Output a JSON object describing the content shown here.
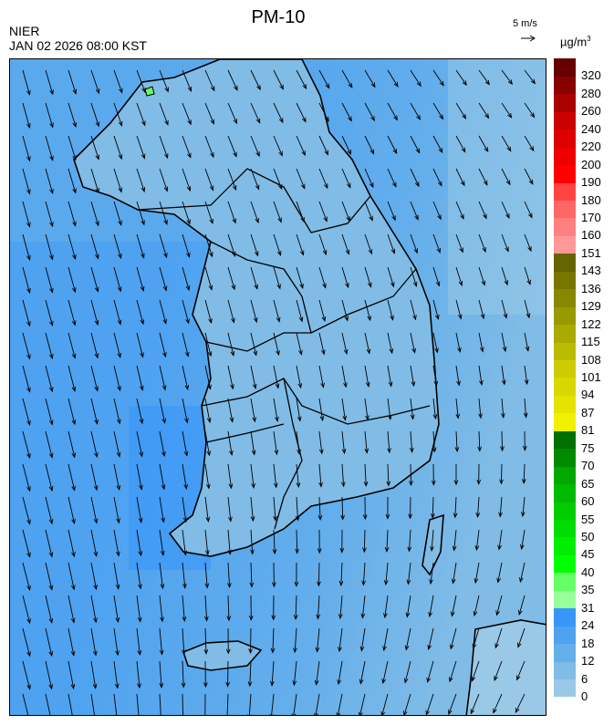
{
  "header": {
    "title": "PM-10",
    "organization": "NIER",
    "datetime": "JAN 02 2026 08:00 KST"
  },
  "wind_reference": {
    "label": "5 m/s",
    "icon": "arrow-right-icon"
  },
  "colorbar": {
    "unit": "µg/m",
    "unit_superscript": "3",
    "levels": [
      {
        "label": "0",
        "color": "#99c9e6"
      },
      {
        "label": "6",
        "color": "#80bce6"
      },
      {
        "label": "12",
        "color": "#64aeeb"
      },
      {
        "label": "18",
        "color": "#4ea2f0"
      },
      {
        "label": "24",
        "color": "#3896f8"
      },
      {
        "label": "31",
        "color": "#99ff99"
      },
      {
        "label": "35",
        "color": "#66ff66"
      },
      {
        "label": "40",
        "color": "#00ff00"
      },
      {
        "label": "45",
        "color": "#00ee00"
      },
      {
        "label": "50",
        "color": "#00dd00"
      },
      {
        "label": "55",
        "color": "#00cc00"
      },
      {
        "label": "60",
        "color": "#00bb00"
      },
      {
        "label": "65",
        "color": "#00a800"
      },
      {
        "label": "70",
        "color": "#008a00"
      },
      {
        "label": "75",
        "color": "#007000"
      },
      {
        "label": "81",
        "color": "#f0f000"
      },
      {
        "label": "87",
        "color": "#e4e400"
      },
      {
        "label": "94",
        "color": "#d8d800"
      },
      {
        "label": "101",
        "color": "#cccc00"
      },
      {
        "label": "108",
        "color": "#bbbb00"
      },
      {
        "label": "115",
        "color": "#aaaa00"
      },
      {
        "label": "122",
        "color": "#999900"
      },
      {
        "label": "129",
        "color": "#888800"
      },
      {
        "label": "136",
        "color": "#777700"
      },
      {
        "label": "143",
        "color": "#666600"
      },
      {
        "label": "151",
        "color": "#ff9999"
      },
      {
        "label": "160",
        "color": "#ff8080"
      },
      {
        "label": "170",
        "color": "#ff6666"
      },
      {
        "label": "180",
        "color": "#ff4444"
      },
      {
        "label": "190",
        "color": "#ff0000"
      },
      {
        "label": "200",
        "color": "#ee0000"
      },
      {
        "label": "220",
        "color": "#dd0000"
      },
      {
        "label": "240",
        "color": "#cc0000"
      },
      {
        "label": "260",
        "color": "#aa0000"
      },
      {
        "label": "280",
        "color": "#880000"
      },
      {
        "label": "320",
        "color": "#660000"
      }
    ]
  },
  "map": {
    "sea_color": "#4ea2f0",
    "land_color": "#80bce6",
    "border_color": "#000000"
  }
}
